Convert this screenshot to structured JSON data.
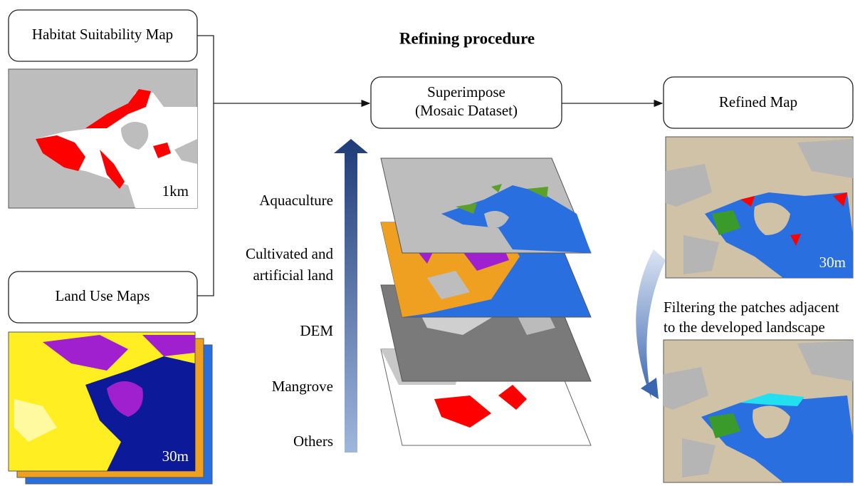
{
  "title": "Refining procedure",
  "nodes": [
    {
      "label": "Habitat Suitability Map"
    },
    {
      "label": "Land Use Maps"
    },
    {
      "label": [
        "Superimpose",
        "(Mosaic Dataset)"
      ]
    },
    {
      "label": "Refined Map"
    }
  ],
  "layers": [
    {
      "label": [
        "Aquaculture"
      ]
    },
    {
      "label": [
        "Cultivated and",
        "artificial land"
      ]
    },
    {
      "label": [
        "DEM"
      ]
    },
    {
      "label": [
        "Mangrove"
      ]
    },
    {
      "label": [
        "Others"
      ]
    }
  ],
  "note": [
    "Filtering the patches adjacent",
    "to the developed landscape"
  ],
  "map_scales": {
    "habitat": "1km",
    "land_use": "30m",
    "refined": "30m"
  }
}
